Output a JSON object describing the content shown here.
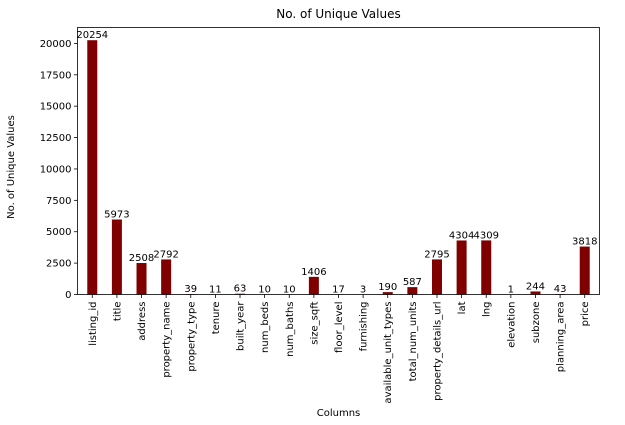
{
  "chart_data": {
    "type": "bar",
    "title": "No. of Unique Values",
    "xlabel": "Columns",
    "ylabel": "No. of Unique Values",
    "ylim": [
      0,
      21266.7
    ],
    "yticks": [
      0,
      2500,
      5000,
      7500,
      10000,
      12500,
      15000,
      17500,
      20000
    ],
    "grid": false,
    "bar_color": "#800000",
    "categories": [
      "listing_id",
      "title",
      "address",
      "property_name",
      "property_type",
      "tenure",
      "built_year",
      "num_beds",
      "num_baths",
      "size_sqft",
      "floor_level",
      "furnishing",
      "available_unit_types",
      "total_num_units",
      "property_details_url",
      "lat",
      "lng",
      "elevation",
      "subzone",
      "planning_area",
      "price"
    ],
    "values": [
      20254,
      5973,
      2508,
      2792,
      39,
      11,
      63,
      10,
      10,
      1406,
      17,
      3,
      190,
      587,
      2795,
      4304,
      4309,
      1,
      244,
      43,
      3818
    ]
  }
}
